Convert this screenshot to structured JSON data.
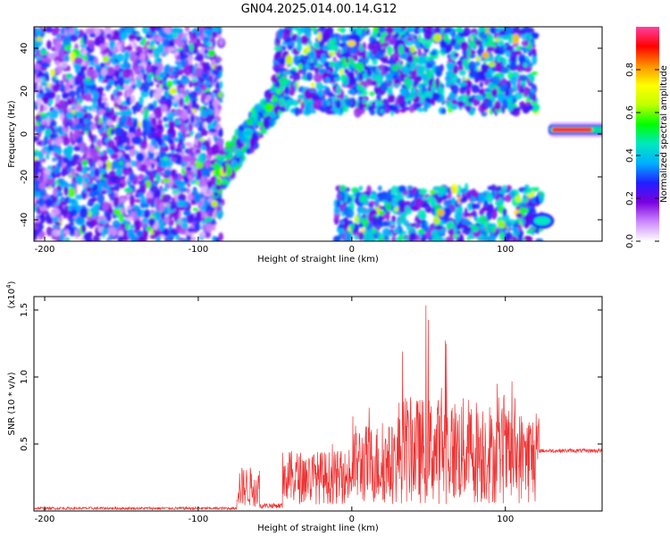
{
  "title": "GN04.2025.014.00.14.G12",
  "chart_data": [
    {
      "type": "heatmap",
      "xlabel": "Height of straight line (km)",
      "ylabel": "Frequency (Hz)",
      "xlim": [
        -207,
        163
      ],
      "ylim": [
        -50,
        50
      ],
      "xticks": [
        -200,
        -100,
        0,
        100
      ],
      "yticks": [
        -40,
        -20,
        0,
        20,
        40
      ],
      "colorbar": {
        "label": "Normalized spectral amplitude",
        "range": [
          0,
          1
        ],
        "ticks": [
          0.0,
          0.2,
          0.4,
          0.6,
          0.8
        ],
        "tick_labels": [
          "0.0",
          "0.2",
          "0.4",
          "0.6",
          "0.8"
        ],
        "colormap": [
          "#ffffff",
          "#cc88ff",
          "#7a00e0",
          "#2020ff",
          "#00b0ff",
          "#00e8c0",
          "#00ff00",
          "#c0ff00",
          "#ffff00",
          "#ff9000",
          "#ff0000",
          "#ff40a0"
        ]
      },
      "features": [
        {
          "name": "noise-field",
          "x_range": [
            -207,
            -85
          ],
          "y_range": [
            -50,
            50
          ],
          "amplitude": 0.15
        },
        {
          "name": "diagonal-band",
          "x_range": [
            -90,
            -45
          ],
          "y_range": [
            -22,
            20
          ],
          "amplitude": 0.4
        },
        {
          "name": "upper-band",
          "x_range": [
            -50,
            120
          ],
          "y_range": [
            10,
            50
          ],
          "amplitude": 0.35
        },
        {
          "name": "lower-band",
          "x_range": [
            -10,
            125
          ],
          "y_range": [
            -50,
            -25
          ],
          "amplitude": 0.35
        },
        {
          "name": "strong-tone",
          "x_range": [
            128,
            163
          ],
          "y_range": [
            0.5,
            3.5
          ],
          "amplitude": 0.95
        },
        {
          "name": "tone-lower",
          "x_range": [
            118,
            130
          ],
          "y_range": [
            -43,
            -38
          ],
          "amplitude": 0.6
        }
      ]
    },
    {
      "type": "line",
      "xlabel": "Height of straight line (km)",
      "ylabel": "SNR (10 * v/v)",
      "y_multiplier": "(x10",
      "y_multiplier_exp": "4",
      "y_multiplier_close": ")",
      "xlim": [
        -207,
        163
      ],
      "ylim": [
        0,
        1.6
      ],
      "xticks": [
        -200,
        -100,
        0,
        100
      ],
      "yticks": [
        0.5,
        1.0,
        1.5
      ],
      "ytick_labels": [
        "0.5",
        "1.0",
        "1.5"
      ],
      "color": "#ee3333",
      "segments": [
        {
          "x_range": [
            -207,
            -75
          ],
          "level": 0.02,
          "spread": 0.01
        },
        {
          "x_range": [
            -75,
            -60
          ],
          "level": 0.18,
          "spread": 0.15,
          "peak": 0.55
        },
        {
          "x_range": [
            -60,
            -45
          ],
          "level": 0.04,
          "spread": 0.02
        },
        {
          "x_range": [
            -45,
            0
          ],
          "level": 0.25,
          "spread": 0.2,
          "peak": 0.5
        },
        {
          "x_range": [
            0,
            30
          ],
          "level": 0.35,
          "spread": 0.3,
          "peak": 0.8
        },
        {
          "x_range": [
            30,
            90
          ],
          "level": 0.45,
          "spread": 0.4,
          "peak": 1.6
        },
        {
          "x_range": [
            90,
            122
          ],
          "level": 0.4,
          "spread": 0.35,
          "peak": 1.0
        },
        {
          "x_range": [
            122,
            163
          ],
          "level": 0.45,
          "spread": 0.015
        }
      ]
    }
  ]
}
